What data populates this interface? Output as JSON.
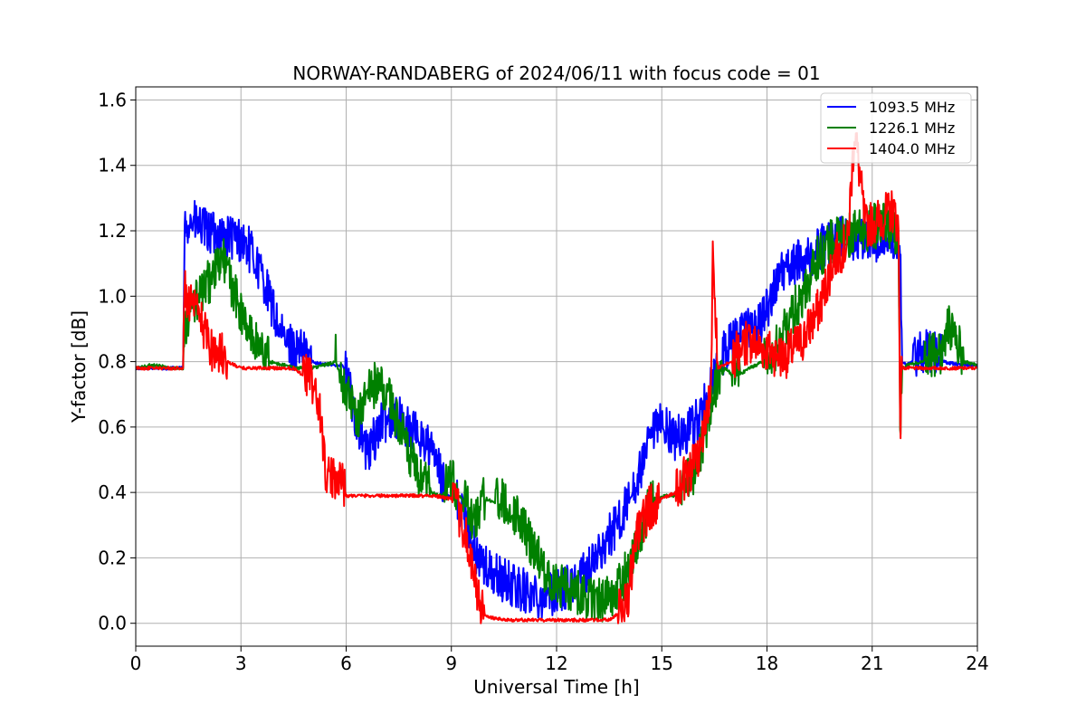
{
  "chart_data": {
    "type": "line",
    "title": "NORWAY-RANDABERG of 2024/06/11 with focus code = 01",
    "xlabel": "Universal Time [h]",
    "ylabel": "Y-factor [dB]",
    "xlim": [
      0,
      24
    ],
    "ylim": [
      -0.07,
      1.64
    ],
    "xticks": [
      0,
      3,
      6,
      9,
      12,
      15,
      18,
      21,
      24
    ],
    "yticks": [
      0.0,
      0.2,
      0.4,
      0.6,
      0.8,
      1.0,
      1.2,
      1.4,
      1.6
    ],
    "xtick_labels": [
      "0",
      "3",
      "6",
      "9",
      "12",
      "15",
      "18",
      "21",
      "24"
    ],
    "ytick_labels": [
      "0.0",
      "0.2",
      "0.4",
      "0.6",
      "0.8",
      "1.0",
      "1.2",
      "1.4",
      "1.6"
    ],
    "grid": true,
    "legend_position": "top-right",
    "series": [
      {
        "name": "1093.5 MHz",
        "color": "#0000ff",
        "x": [
          0,
          0.5,
          1.0,
          1.35,
          1.4,
          1.5,
          1.8,
          2.1,
          2.5,
          3.0,
          3.3,
          3.6,
          3.9,
          4.2,
          4.6,
          5.0,
          5.5,
          5.9,
          6.0,
          6.3,
          6.6,
          7.0,
          7.4,
          7.8,
          8.2,
          8.5,
          8.8,
          9.1,
          9.4,
          9.7,
          10.0,
          10.4,
          10.8,
          11.2,
          11.6,
          12.0,
          12.3,
          12.6,
          12.9,
          13.2,
          13.5,
          13.8,
          14.1,
          14.4,
          14.7,
          15.0,
          15.4,
          15.8,
          16.1,
          16.4,
          16.7,
          17.0,
          17.4,
          17.8,
          18.1,
          18.4,
          18.7,
          19.0,
          19.3,
          19.7,
          20.0,
          20.4,
          20.8,
          21.2,
          21.6,
          21.8,
          21.85,
          22.0,
          22.5,
          23.0,
          23.5,
          24.0
        ],
        "values": [
          0.78,
          0.78,
          0.78,
          0.78,
          1.2,
          1.22,
          1.2,
          1.18,
          1.17,
          1.16,
          1.12,
          1.05,
          0.95,
          0.85,
          0.82,
          0.8,
          0.79,
          0.79,
          0.75,
          0.6,
          0.5,
          0.6,
          0.62,
          0.58,
          0.55,
          0.5,
          0.4,
          0.38,
          0.3,
          0.2,
          0.15,
          0.12,
          0.1,
          0.08,
          0.07,
          0.08,
          0.1,
          0.12,
          0.15,
          0.2,
          0.25,
          0.3,
          0.38,
          0.45,
          0.55,
          0.6,
          0.55,
          0.58,
          0.62,
          0.7,
          0.8,
          0.85,
          0.88,
          0.9,
          0.98,
          1.05,
          1.08,
          1.1,
          1.12,
          1.15,
          1.16,
          1.16,
          1.16,
          1.16,
          1.17,
          1.16,
          0.8,
          0.79,
          0.82,
          0.8,
          0.79,
          0.79
        ]
      },
      {
        "name": "1226.1 MHz",
        "color": "#008000",
        "x": [
          0,
          0.5,
          1.0,
          1.35,
          1.4,
          1.6,
          1.9,
          2.2,
          2.5,
          2.8,
          3.1,
          3.4,
          3.8,
          4.2,
          4.6,
          5.0,
          5.4,
          5.7,
          6.0,
          6.3,
          6.6,
          6.9,
          7.2,
          7.5,
          7.8,
          8.1,
          8.4,
          8.7,
          9.0,
          9.3,
          9.6,
          10.0,
          10.5,
          11.0,
          11.4,
          11.8,
          12.2,
          12.6,
          13.0,
          13.3,
          13.6,
          13.9,
          14.2,
          14.5,
          14.8,
          15.1,
          15.5,
          15.9,
          16.2,
          16.5,
          16.8,
          17.1,
          17.5,
          17.9,
          18.2,
          18.5,
          18.8,
          19.1,
          19.4,
          19.8,
          20.2,
          20.6,
          21.0,
          21.4,
          21.75,
          21.8,
          21.85,
          22.0,
          22.5,
          23.0,
          23.2,
          23.6,
          24.0
        ],
        "values": [
          0.78,
          0.79,
          0.78,
          0.78,
          0.9,
          0.95,
          1.0,
          1.05,
          1.1,
          1.0,
          0.9,
          0.85,
          0.8,
          0.79,
          0.78,
          0.78,
          0.79,
          0.8,
          0.7,
          0.6,
          0.7,
          0.72,
          0.68,
          0.6,
          0.5,
          0.42,
          0.4,
          0.39,
          0.42,
          0.38,
          0.3,
          0.38,
          0.36,
          0.3,
          0.2,
          0.12,
          0.1,
          0.08,
          0.06,
          0.06,
          0.08,
          0.12,
          0.2,
          0.3,
          0.38,
          0.39,
          0.39,
          0.45,
          0.55,
          0.7,
          0.78,
          0.75,
          0.78,
          0.8,
          0.82,
          0.88,
          0.95,
          1.0,
          1.1,
          1.15,
          1.17,
          1.18,
          1.2,
          1.2,
          1.18,
          0.56,
          0.78,
          0.79,
          0.8,
          0.82,
          0.9,
          0.8,
          0.79
        ]
      },
      {
        "name": "1404.0 MHz",
        "color": "#ff0000",
        "x": [
          0,
          0.5,
          1.0,
          1.35,
          1.4,
          1.6,
          1.9,
          2.2,
          2.6,
          3.0,
          3.5,
          4.0,
          4.5,
          4.9,
          5.1,
          5.3,
          5.4,
          5.6,
          5.8,
          6.0,
          6.5,
          7.0,
          7.5,
          8.0,
          8.5,
          9.0,
          9.3,
          9.6,
          9.8,
          10.0,
          10.5,
          11.0,
          11.5,
          12.0,
          12.5,
          13.0,
          13.5,
          14.0,
          14.3,
          14.6,
          15.0,
          15.4,
          15.8,
          16.1,
          16.4,
          16.45,
          16.6,
          17.0,
          17.5,
          18.0,
          18.5,
          19.0,
          19.5,
          19.9,
          20.3,
          20.5,
          20.8,
          21.2,
          21.6,
          21.75,
          21.8,
          21.85,
          22.0,
          22.5,
          23.0,
          23.5,
          24.0
        ],
        "values": [
          0.78,
          0.78,
          0.78,
          0.78,
          1.0,
          0.95,
          0.9,
          0.82,
          0.8,
          0.78,
          0.78,
          0.78,
          0.78,
          0.75,
          0.7,
          0.6,
          0.45,
          0.42,
          0.45,
          0.39,
          0.39,
          0.39,
          0.39,
          0.39,
          0.39,
          0.38,
          0.3,
          0.15,
          0.05,
          0.02,
          0.01,
          0.01,
          0.01,
          0.01,
          0.01,
          0.01,
          0.01,
          0.05,
          0.25,
          0.33,
          0.38,
          0.4,
          0.45,
          0.5,
          0.7,
          1.1,
          0.78,
          0.8,
          0.85,
          0.82,
          0.8,
          0.85,
          0.95,
          1.1,
          1.15,
          1.5,
          1.2,
          1.22,
          1.25,
          1.2,
          0.58,
          0.78,
          0.78,
          0.78,
          0.78,
          0.78,
          0.78
        ]
      }
    ]
  }
}
